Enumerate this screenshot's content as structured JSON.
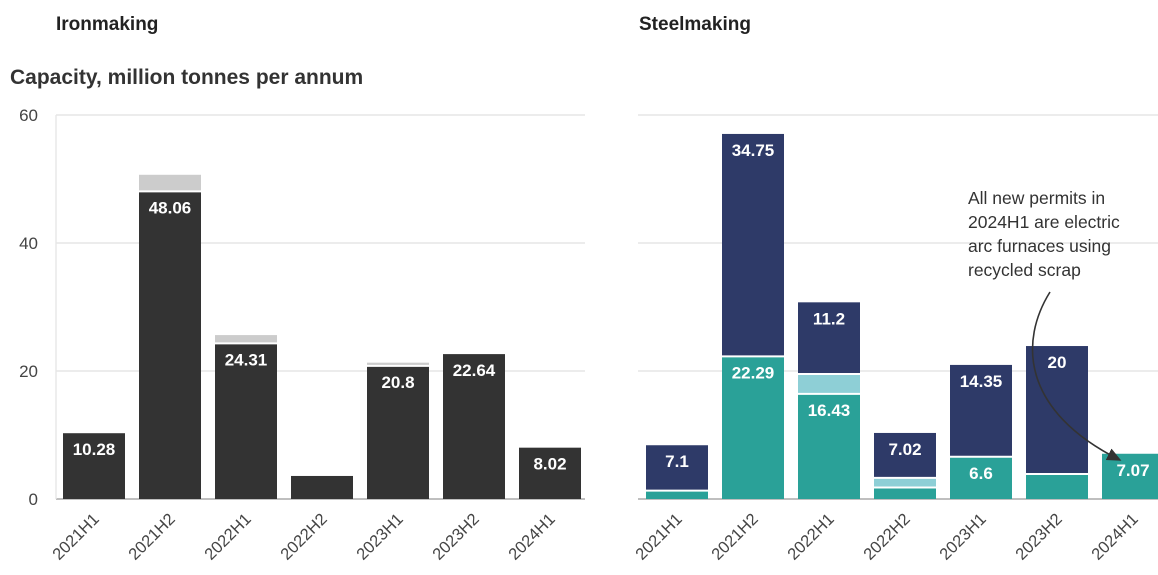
{
  "panels": {
    "iron_title": "Ironmaking",
    "steel_title": "Steelmaking",
    "subtitle": "Capacity, million tonnes per annum"
  },
  "annotation": {
    "lines": [
      "All new permits in",
      "2024H1 are electric",
      "arc furnaces using",
      "recycled scrap"
    ]
  },
  "colors": {
    "iron": "#333333",
    "iron_extra": "#cccccc",
    "steel_top": "#2e3a68",
    "steel_bottom": "#2aa198",
    "steel_light": "#8ecfd6",
    "grid": "#e6e6e6",
    "axis": "#999999"
  },
  "chart_data": [
    {
      "type": "bar",
      "title": "Ironmaking",
      "ylabel": "Capacity, million tonnes per annum",
      "ylim": [
        0,
        60
      ],
      "yticks": [
        0,
        20,
        40,
        60
      ],
      "grid": true,
      "categories": [
        "2021H1",
        "2021H2",
        "2022H1",
        "2022H2",
        "2023H1",
        "2023H2",
        "2024H1"
      ],
      "series": [
        {
          "values": [
            10.28,
            48.06,
            24.31,
            3.6,
            20.8,
            22.64,
            8.02
          ],
          "labels": [
            "10.28",
            "48.06",
            "24.31",
            "",
            "20.8",
            "22.64",
            "8.02"
          ]
        },
        {
          "values": [
            0,
            2.6,
            1.3,
            0,
            0.5,
            0,
            0
          ]
        }
      ]
    },
    {
      "type": "bar",
      "title": "Steelmaking",
      "ylim": [
        0,
        60
      ],
      "grid": true,
      "categories": [
        "2021H1",
        "2021H2",
        "2022H1",
        "2022H2",
        "2023H1",
        "2023H2",
        "2024H1"
      ],
      "series": [
        {
          "values": [
            1.3,
            22.29,
            16.43,
            1.8,
            6.6,
            3.9,
            7.07
          ],
          "labels": [
            "",
            "22.29",
            "16.43",
            "",
            "6.6",
            "",
            "7.07"
          ]
        },
        {
          "values": [
            0,
            0,
            3.1,
            1.5,
            0,
            0,
            0
          ]
        },
        {
          "values": [
            7.1,
            34.75,
            11.2,
            7.02,
            14.35,
            20,
            0
          ],
          "labels": [
            "7.1",
            "34.75",
            "11.2",
            "7.02",
            "14.35",
            "20",
            ""
          ]
        }
      ]
    }
  ]
}
